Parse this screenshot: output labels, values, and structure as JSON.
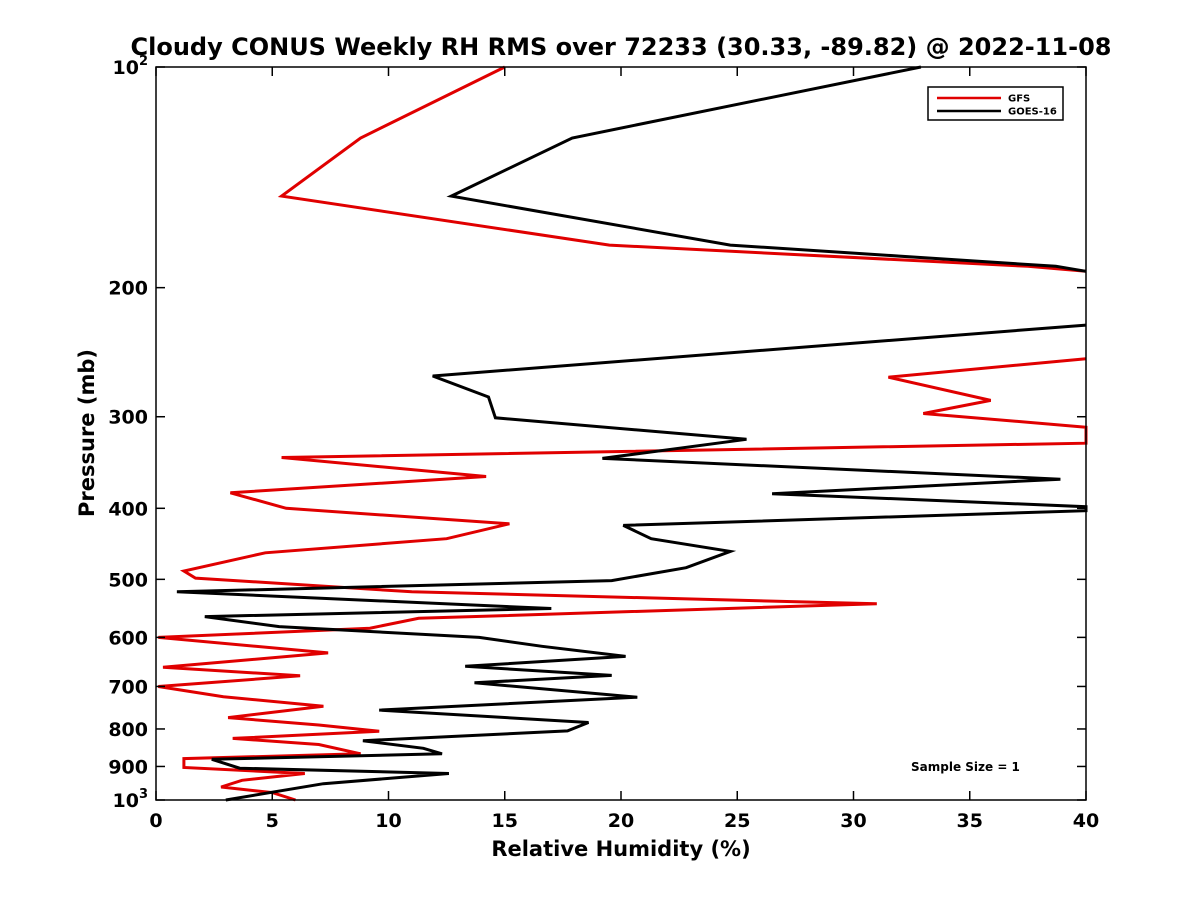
{
  "chart_data": {
    "type": "line",
    "title": "Cloudy CONUS Weekly RH RMS over 72233 (30.33, -89.82) @ 2022-11-08",
    "xlabel": "Relative Humidity (%)",
    "ylabel": "Pressure (mb)",
    "xlim": [
      0,
      40
    ],
    "ylim": [
      100,
      1000
    ],
    "yscale": "log",
    "y_reversed": true,
    "grid": false,
    "legend_position": "top-right",
    "x_ticks": [
      0,
      5,
      10,
      15,
      20,
      25,
      30,
      35,
      40
    ],
    "x_tick_labels": [
      "0",
      "5",
      "10",
      "15",
      "20",
      "25",
      "30",
      "35",
      "40"
    ],
    "y_ticks": [
      100,
      200,
      300,
      400,
      500,
      600,
      700,
      800,
      900,
      1000
    ],
    "y_tick_labels": [
      {
        "base": "10",
        "sup": "2"
      },
      {
        "base": "200"
      },
      {
        "base": "300"
      },
      {
        "base": "400"
      },
      {
        "base": "500"
      },
      {
        "base": "600"
      },
      {
        "base": "700"
      },
      {
        "base": "800"
      },
      {
        "base": "900"
      },
      {
        "base": "10",
        "sup": "3"
      }
    ],
    "annotation": "Sample Size = 1",
    "series": [
      {
        "name": "GFS",
        "color": "#e00000",
        "points": [
          [
            15.0,
            100
          ],
          [
            8.8,
            125
          ],
          [
            5.4,
            150
          ],
          [
            19.5,
            175
          ],
          [
            37.5,
            187
          ],
          [
            40,
            190
          ],
          [
            null,
            240
          ],
          [
            40,
            250
          ],
          [
            31.5,
            265
          ],
          [
            35.9,
            285
          ],
          [
            33.0,
            297
          ],
          [
            40,
            310
          ],
          [
            40,
            326
          ],
          [
            5.4,
            341
          ],
          [
            14.2,
            362
          ],
          [
            3.2,
            381
          ],
          [
            5.6,
            400
          ],
          [
            15.2,
            420
          ],
          [
            12.5,
            440
          ],
          [
            4.7,
            460
          ],
          [
            1.2,
            487
          ],
          [
            1.7,
            498
          ],
          [
            11.0,
            520
          ],
          [
            31.0,
            540
          ],
          [
            11.3,
            565
          ],
          [
            9.2,
            583
          ],
          [
            0.1,
            600
          ],
          [
            7.4,
            630
          ],
          [
            0.3,
            659
          ],
          [
            6.2,
            677
          ],
          [
            0.1,
            700
          ],
          [
            2.9,
            723
          ],
          [
            7.2,
            745
          ],
          [
            3.1,
            772
          ],
          [
            7.0,
            790
          ],
          [
            9.6,
            806
          ],
          [
            3.3,
            824
          ],
          [
            7.0,
            840
          ],
          [
            8.8,
            865
          ],
          [
            1.2,
            878
          ],
          [
            1.2,
            903
          ],
          [
            6.4,
            920
          ],
          [
            3.7,
            940
          ],
          [
            2.8,
            960
          ],
          [
            5.0,
            977
          ],
          [
            6.0,
            1000
          ]
        ]
      },
      {
        "name": "GOES-16",
        "color": "#000000",
        "points": [
          [
            32.9,
            100
          ],
          [
            17.9,
            125
          ],
          [
            12.7,
            150
          ],
          [
            24.7,
            175
          ],
          [
            38.7,
            187
          ],
          [
            40,
            190
          ],
          [
            null,
            215
          ],
          [
            40,
            225
          ],
          [
            11.9,
            264
          ],
          [
            14.3,
            282
          ],
          [
            14.6,
            301
          ],
          [
            25.4,
            322
          ],
          [
            19.2,
            342
          ],
          [
            38.9,
            365
          ],
          [
            26.5,
            382
          ],
          [
            40,
            398
          ],
          [
            40,
            403
          ],
          [
            20.1,
            422
          ],
          [
            21.3,
            440
          ],
          [
            24.7,
            458
          ],
          [
            22.8,
            482
          ],
          [
            19.6,
            502
          ],
          [
            0.9,
            520
          ],
          [
            17.0,
            548
          ],
          [
            2.1,
            562
          ],
          [
            5.3,
            580
          ],
          [
            13.9,
            600
          ],
          [
            16.6,
            617
          ],
          [
            20.2,
            637
          ],
          [
            13.3,
            657
          ],
          [
            19.6,
            676
          ],
          [
            13.7,
            692
          ],
          [
            20.7,
            724
          ],
          [
            9.6,
            754
          ],
          [
            18.6,
            784
          ],
          [
            17.7,
            805
          ],
          [
            8.9,
            830
          ],
          [
            11.5,
            850
          ],
          [
            12.3,
            865
          ],
          [
            2.4,
            880
          ],
          [
            3.6,
            905
          ],
          [
            12.6,
            920
          ],
          [
            7.2,
            950
          ],
          [
            3.0,
            1000
          ]
        ]
      }
    ]
  }
}
